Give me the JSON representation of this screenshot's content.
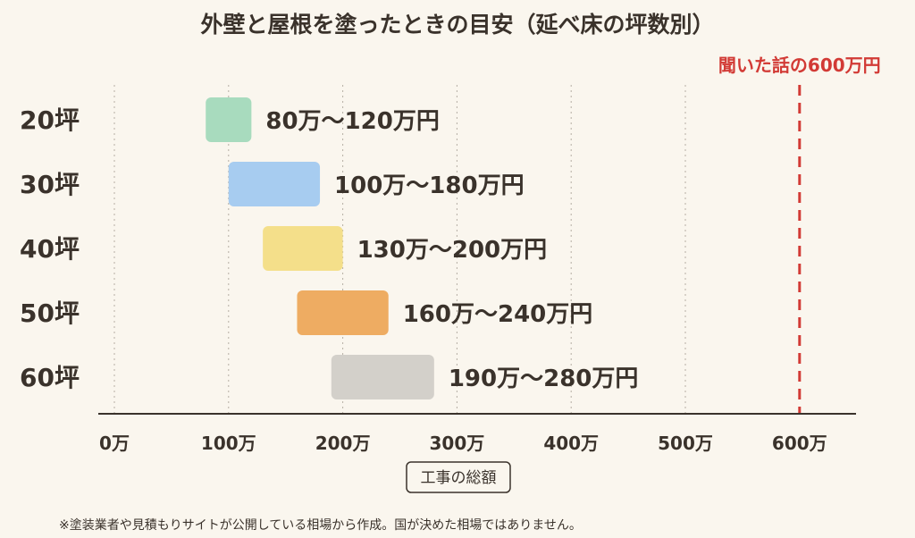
{
  "chart_data": {
    "type": "bar",
    "orientation": "horizontal-range",
    "title": "外壁と屋根を塗ったときの目安（延べ床の坪数別）",
    "xlabel": "工事の総額",
    "xlim": [
      0,
      650
    ],
    "xticks": [
      {
        "value": 0,
        "label": "0万"
      },
      {
        "value": 100,
        "label": "100万"
      },
      {
        "value": 200,
        "label": "200万"
      },
      {
        "value": 300,
        "label": "300万"
      },
      {
        "value": 400,
        "label": "400万"
      },
      {
        "value": 500,
        "label": "500万"
      },
      {
        "value": 600,
        "label": "600万"
      }
    ],
    "grid": "vertical-dotted",
    "categories": [
      "20坪",
      "30坪",
      "40坪",
      "50坪",
      "60坪"
    ],
    "ranges": [
      {
        "category": "20坪",
        "low": 80,
        "high": 120,
        "label": "80万〜120万円",
        "color": "#a8dbbe"
      },
      {
        "category": "30坪",
        "low": 100,
        "high": 180,
        "label": "100万〜180万円",
        "color": "#a7ccf0"
      },
      {
        "category": "40坪",
        "low": 130,
        "high": 200,
        "label": "130万〜200万円",
        "color": "#f4df8a"
      },
      {
        "category": "50坪",
        "low": 160,
        "high": 240,
        "label": "160万〜240万円",
        "color": "#eeac62"
      },
      {
        "category": "60坪",
        "low": 190,
        "high": 280,
        "label": "190万〜280万円",
        "color": "#d3d0ca"
      }
    ],
    "reference_line": {
      "value": 600,
      "label": "聞いた話の600万円",
      "color": "#d23a35"
    }
  },
  "footnote": "※塗装業者や見積もりサイトが公開している相場から作成。国が決めた相場ではありません。"
}
